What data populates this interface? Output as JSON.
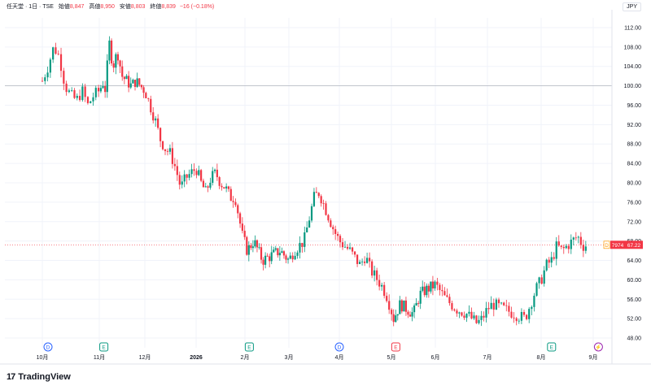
{
  "header": {
    "symbol": "任天堂 · 1日 · TSE",
    "open_label": "始値",
    "open": "8,847",
    "high_label": "高値",
    "high": "8,950",
    "low_label": "安値",
    "low": "8,803",
    "close_label": "終値",
    "close": "8,839",
    "change": "−16 (−0.18%)"
  },
  "currency": "JPY",
  "brand": "TradingView",
  "colors": {
    "up": "#089981",
    "down": "#f23645",
    "grid": "#f0f3fa",
    "text": "#131722"
  },
  "chart_data": {
    "type": "candlestick",
    "y_axis": {
      "min": 46,
      "max": 114,
      "ticks": [
        "112.00",
        "108.00",
        "104.00",
        "100.00",
        "96.00",
        "92.00",
        "88.00",
        "84.00",
        "80.00",
        "76.00",
        "72.00",
        "68.00",
        "64.00",
        "60.00",
        "56.00",
        "52.00",
        "48.00"
      ]
    },
    "x_axis": {
      "labels": [
        "10月",
        "11月",
        "12月",
        "2026",
        "2月",
        "3月",
        "4月",
        "5月",
        "6月",
        "7月",
        "8月",
        "9月"
      ]
    },
    "reference_line": {
      "value": "100.00"
    },
    "last_price": {
      "value": "67.22",
      "tag": "7974"
    },
    "events": [
      {
        "type": "D",
        "month_index": 0.1
      },
      {
        "type": "E",
        "month_index": 1.1
      },
      {
        "type": "E",
        "month_index": 4.1
      },
      {
        "type": "D",
        "month_index": 6.0
      },
      {
        "type": "E",
        "month_index": 7.1
      },
      {
        "type": "E",
        "month_index": 10.2
      },
      {
        "type": "split",
        "month_index": 11.1
      }
    ],
    "close_path": [
      [
        0.0,
        101
      ],
      [
        0.1,
        104
      ],
      [
        0.2,
        108
      ],
      [
        0.3,
        106
      ],
      [
        0.4,
        100
      ],
      [
        0.5,
        98
      ],
      [
        0.6,
        97
      ],
      [
        0.7,
        99
      ],
      [
        0.8,
        96
      ],
      [
        0.9,
        98
      ],
      [
        1.0,
        99
      ],
      [
        1.1,
        101
      ],
      [
        1.15,
        98
      ],
      [
        1.2,
        110
      ],
      [
        1.3,
        104
      ],
      [
        1.4,
        107
      ],
      [
        1.5,
        102
      ],
      [
        1.6,
        101
      ],
      [
        1.7,
        100
      ],
      [
        1.8,
        101
      ],
      [
        1.9,
        100
      ],
      [
        2.0,
        99
      ],
      [
        2.1,
        96
      ],
      [
        2.2,
        93
      ],
      [
        2.3,
        89
      ],
      [
        2.4,
        87
      ],
      [
        2.5,
        86
      ],
      [
        2.6,
        83
      ],
      [
        2.7,
        79
      ],
      [
        2.8,
        81
      ],
      [
        2.9,
        82
      ],
      [
        3.0,
        83
      ],
      [
        3.1,
        80
      ],
      [
        3.2,
        78
      ],
      [
        3.3,
        81
      ],
      [
        3.4,
        82
      ],
      [
        3.5,
        80
      ],
      [
        3.6,
        79
      ],
      [
        3.7,
        77
      ],
      [
        3.8,
        77
      ],
      [
        3.95,
        69
      ],
      [
        4.05,
        66
      ],
      [
        4.2,
        68
      ],
      [
        4.4,
        64
      ],
      [
        4.6,
        65
      ],
      [
        4.8,
        66
      ],
      [
        5.0,
        64
      ],
      [
        5.1,
        66
      ],
      [
        5.2,
        67
      ],
      [
        5.3,
        68
      ],
      [
        5.5,
        77
      ],
      [
        5.6,
        78
      ],
      [
        5.75,
        74
      ],
      [
        5.9,
        70
      ],
      [
        6.0,
        68
      ],
      [
        6.1,
        67
      ],
      [
        6.2,
        66
      ],
      [
        6.4,
        63
      ],
      [
        6.5,
        65
      ],
      [
        6.6,
        62
      ],
      [
        6.8,
        59
      ],
      [
        6.9,
        57
      ],
      [
        7.05,
        52
      ],
      [
        7.2,
        55
      ],
      [
        7.35,
        54
      ],
      [
        7.5,
        53
      ],
      [
        7.65,
        57
      ],
      [
        7.8,
        58
      ],
      [
        8.0,
        59
      ],
      [
        8.2,
        56
      ],
      [
        8.4,
        54
      ],
      [
        8.6,
        53
      ],
      [
        8.8,
        51
      ],
      [
        8.9,
        52
      ],
      [
        9.0,
        54
      ],
      [
        9.1,
        55
      ],
      [
        9.3,
        54
      ],
      [
        9.5,
        53
      ],
      [
        9.7,
        52
      ],
      [
        9.8,
        55
      ],
      [
        9.9,
        58
      ],
      [
        10.0,
        60
      ],
      [
        10.1,
        63
      ],
      [
        10.2,
        64
      ],
      [
        10.3,
        67
      ],
      [
        10.4,
        66
      ],
      [
        10.5,
        67
      ],
      [
        10.6,
        68
      ],
      [
        10.7,
        69
      ],
      [
        10.8,
        67
      ],
      [
        10.9,
        67.22
      ]
    ]
  }
}
